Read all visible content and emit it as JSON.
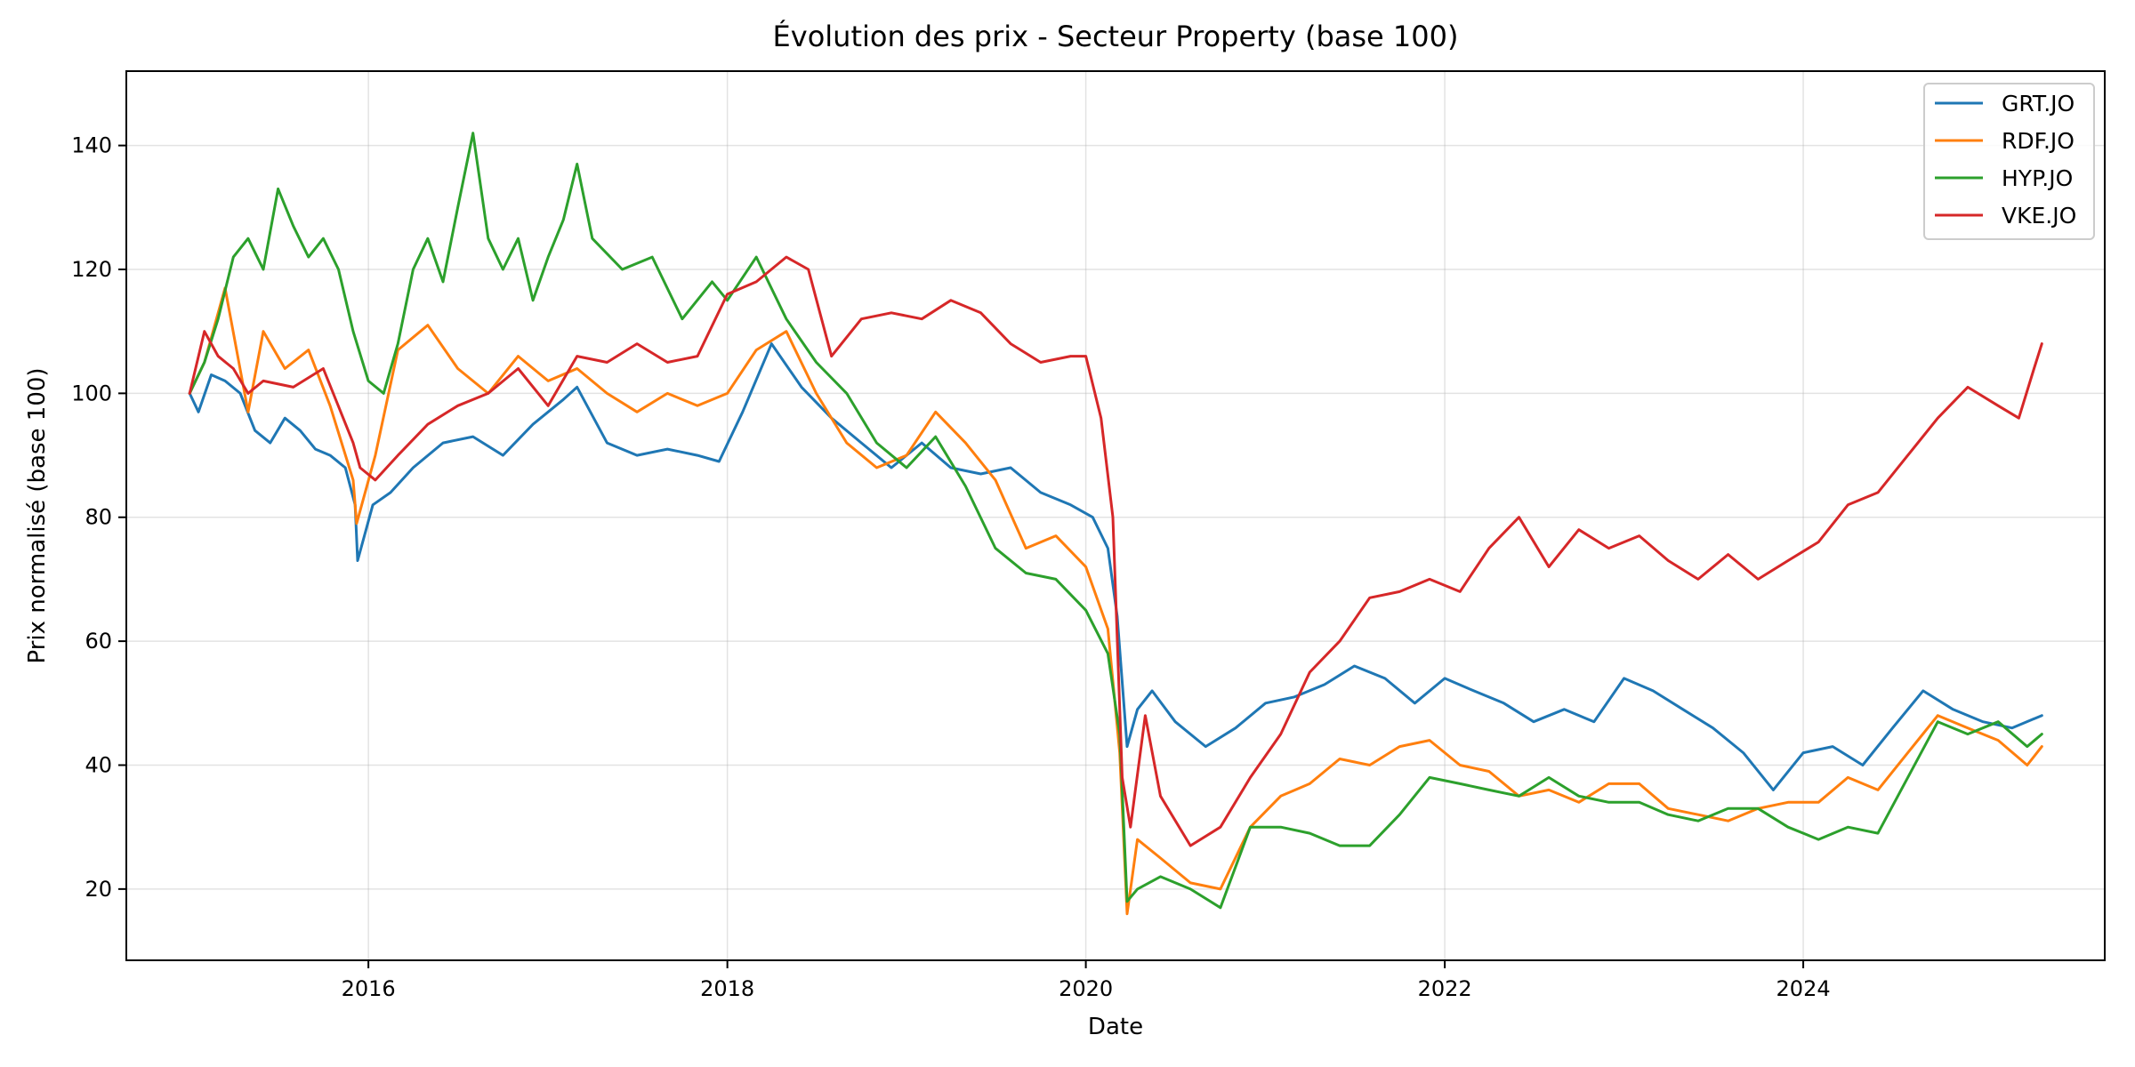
{
  "chart_data": {
    "type": "line",
    "title": "Évolution des prix - Secteur Property (base 100)",
    "xlabel": "Date",
    "ylabel": "Prix normalisé (base 100)",
    "xlim": [
      "2014-08-26",
      "2025-09-06"
    ],
    "ylim": [
      8.5,
      152
    ],
    "x_ticks": [
      "2016-01-01",
      "2018-01-01",
      "2020-01-01",
      "2022-01-01",
      "2024-01-01"
    ],
    "x_tick_labels": [
      "2016",
      "2018",
      "2020",
      "2022",
      "2024"
    ],
    "y_ticks": [
      20,
      40,
      60,
      80,
      100,
      120,
      140
    ],
    "grid": true,
    "legend_position": "top-right",
    "series": [
      {
        "name": "GRT.JO",
        "color": "#1f77b4",
        "x": [
          "2015-01-02",
          "2015-01-20",
          "2015-02-15",
          "2015-03-15",
          "2015-04-15",
          "2015-05-15",
          "2015-06-15",
          "2015-07-15",
          "2015-08-15",
          "2015-09-15",
          "2015-10-15",
          "2015-11-15",
          "2015-12-05",
          "2015-12-10",
          "2016-01-10",
          "2016-02-15",
          "2016-04-01",
          "2016-06-01",
          "2016-08-01",
          "2016-10-01",
          "2016-12-01",
          "2017-02-01",
          "2017-03-01",
          "2017-05-01",
          "2017-07-01",
          "2017-09-01",
          "2017-11-01",
          "2017-12-15",
          "2018-02-01",
          "2018-04-01",
          "2018-06-01",
          "2018-08-01",
          "2018-10-01",
          "2018-12-01",
          "2019-02-01",
          "2019-04-01",
          "2019-06-01",
          "2019-08-01",
          "2019-10-01",
          "2019-12-01",
          "2020-01-15",
          "2020-02-15",
          "2020-03-05",
          "2020-03-25",
          "2020-04-15",
          "2020-05-15",
          "2020-07-01",
          "2020-09-01",
          "2020-11-01",
          "2021-01-01",
          "2021-03-01",
          "2021-05-01",
          "2021-07-01",
          "2021-09-01",
          "2021-11-01",
          "2022-01-01",
          "2022-03-01",
          "2022-05-01",
          "2022-07-01",
          "2022-09-01",
          "2022-11-01",
          "2023-01-01",
          "2023-03-01",
          "2023-05-01",
          "2023-07-01",
          "2023-09-01",
          "2023-11-01",
          "2024-01-01",
          "2024-03-01",
          "2024-05-01",
          "2024-07-01",
          "2024-09-01",
          "2024-11-01",
          "2025-01-01",
          "2025-03-01",
          "2025-05-01"
        ],
        "values": [
          100,
          97,
          103,
          102,
          100,
          94,
          92,
          96,
          94,
          91,
          90,
          88,
          82,
          73,
          82,
          84,
          88,
          92,
          93,
          90,
          95,
          99,
          101,
          92,
          90,
          91,
          90,
          89,
          97,
          108,
          101,
          96,
          92,
          88,
          92,
          88,
          87,
          88,
          84,
          82,
          80,
          75,
          64,
          43,
          49,
          52,
          47,
          43,
          46,
          50,
          51,
          53,
          56,
          54,
          50,
          54,
          52,
          50,
          47,
          49,
          47,
          54,
          52,
          49,
          46,
          42,
          36,
          42,
          43,
          40,
          46,
          52,
          49,
          47,
          46,
          48
        ]
      },
      {
        "name": "RDF.JO",
        "color": "#ff7f0e",
        "x": [
          "2015-01-02",
          "2015-02-01",
          "2015-03-15",
          "2015-05-01",
          "2015-06-01",
          "2015-07-15",
          "2015-09-01",
          "2015-10-15",
          "2015-12-01",
          "2015-12-08",
          "2016-01-15",
          "2016-03-01",
          "2016-05-01",
          "2016-07-01",
          "2016-09-01",
          "2016-11-01",
          "2017-01-01",
          "2017-03-01",
          "2017-05-01",
          "2017-07-01",
          "2017-09-01",
          "2017-11-01",
          "2018-01-01",
          "2018-03-01",
          "2018-05-01",
          "2018-07-01",
          "2018-09-01",
          "2018-11-01",
          "2019-01-01",
          "2019-03-01",
          "2019-05-01",
          "2019-07-01",
          "2019-09-01",
          "2019-11-01",
          "2020-01-01",
          "2020-02-15",
          "2020-03-10",
          "2020-03-25",
          "2020-04-15",
          "2020-06-01",
          "2020-08-01",
          "2020-10-01",
          "2020-12-01",
          "2021-02-01",
          "2021-04-01",
          "2021-06-01",
          "2021-08-01",
          "2021-10-01",
          "2021-12-01",
          "2022-02-01",
          "2022-04-01",
          "2022-06-01",
          "2022-08-01",
          "2022-10-01",
          "2022-12-01",
          "2023-02-01",
          "2023-04-01",
          "2023-06-01",
          "2023-08-01",
          "2023-10-01",
          "2023-12-01",
          "2024-02-01",
          "2024-04-01",
          "2024-06-01",
          "2024-08-01",
          "2024-10-01",
          "2024-12-01",
          "2025-02-01",
          "2025-04-01",
          "2025-05-01"
        ],
        "values": [
          100,
          105,
          117,
          97,
          110,
          104,
          107,
          98,
          86,
          79,
          90,
          107,
          111,
          104,
          100,
          106,
          102,
          104,
          100,
          97,
          100,
          98,
          100,
          107,
          110,
          100,
          92,
          88,
          90,
          97,
          92,
          86,
          75,
          77,
          72,
          62,
          42,
          16,
          28,
          25,
          21,
          20,
          30,
          35,
          37,
          41,
          40,
          43,
          44,
          40,
          39,
          35,
          36,
          34,
          37,
          37,
          33,
          32,
          31,
          33,
          34,
          34,
          38,
          36,
          42,
          48,
          46,
          44,
          40,
          43
        ]
      },
      {
        "name": "HYP.JO",
        "color": "#2ca02c",
        "x": [
          "2015-01-02",
          "2015-02-01",
          "2015-03-01",
          "2015-04-01",
          "2015-05-01",
          "2015-06-01",
          "2015-07-01",
          "2015-08-01",
          "2015-09-01",
          "2015-10-01",
          "2015-11-01",
          "2015-12-01",
          "2016-01-01",
          "2016-02-01",
          "2016-03-01",
          "2016-04-01",
          "2016-05-01",
          "2016-06-01",
          "2016-07-01",
          "2016-08-01",
          "2016-09-01",
          "2016-10-01",
          "2016-11-01",
          "2016-12-01",
          "2017-01-01",
          "2017-02-01",
          "2017-03-01",
          "2017-04-01",
          "2017-06-01",
          "2017-08-01",
          "2017-10-01",
          "2017-12-01",
          "2018-01-01",
          "2018-03-01",
          "2018-05-01",
          "2018-07-01",
          "2018-09-01",
          "2018-11-01",
          "2019-01-01",
          "2019-03-01",
          "2019-05-01",
          "2019-07-01",
          "2019-09-01",
          "2019-11-01",
          "2020-01-01",
          "2020-02-15",
          "2020-03-10",
          "2020-03-25",
          "2020-04-15",
          "2020-06-01",
          "2020-08-01",
          "2020-10-01",
          "2020-12-01",
          "2021-02-01",
          "2021-04-01",
          "2021-06-01",
          "2021-08-01",
          "2021-10-01",
          "2021-12-01",
          "2022-02-01",
          "2022-04-01",
          "2022-06-01",
          "2022-08-01",
          "2022-10-01",
          "2022-12-01",
          "2023-02-01",
          "2023-04-01",
          "2023-06-01",
          "2023-08-01",
          "2023-10-01",
          "2023-12-01",
          "2024-02-01",
          "2024-04-01",
          "2024-06-01",
          "2024-08-01",
          "2024-10-01",
          "2024-12-01",
          "2025-02-01",
          "2025-04-01",
          "2025-05-01"
        ],
        "values": [
          100,
          105,
          112,
          122,
          125,
          120,
          133,
          127,
          122,
          125,
          120,
          110,
          102,
          100,
          108,
          120,
          125,
          118,
          130,
          142,
          125,
          120,
          125,
          115,
          122,
          128,
          137,
          125,
          120,
          122,
          112,
          118,
          115,
          122,
          112,
          105,
          100,
          92,
          88,
          93,
          85,
          75,
          71,
          70,
          65,
          58,
          45,
          18,
          20,
          22,
          20,
          17,
          30,
          30,
          29,
          27,
          27,
          32,
          38,
          37,
          36,
          35,
          38,
          35,
          34,
          34,
          32,
          31,
          33,
          33,
          30,
          28,
          30,
          29,
          38,
          47,
          45,
          47,
          43,
          45
        ]
      },
      {
        "name": "VKE.JO",
        "color": "#d62728",
        "x": [
          "2015-01-02",
          "2015-02-01",
          "2015-03-01",
          "2015-04-01",
          "2015-05-01",
          "2015-06-01",
          "2015-08-01",
          "2015-10-01",
          "2015-12-01",
          "2015-12-15",
          "2016-01-15",
          "2016-03-01",
          "2016-05-01",
          "2016-07-01",
          "2016-09-01",
          "2016-11-01",
          "2017-01-01",
          "2017-03-01",
          "2017-05-01",
          "2017-07-01",
          "2017-09-01",
          "2017-11-01",
          "2018-01-01",
          "2018-03-01",
          "2018-05-01",
          "2018-06-15",
          "2018-08-01",
          "2018-10-01",
          "2018-12-01",
          "2019-02-01",
          "2019-04-01",
          "2019-06-01",
          "2019-08-01",
          "2019-10-01",
          "2019-12-01",
          "2020-01-01",
          "2020-02-01",
          "2020-02-25",
          "2020-03-15",
          "2020-04-01",
          "2020-05-01",
          "2020-06-01",
          "2020-08-01",
          "2020-10-01",
          "2020-12-01",
          "2021-02-01",
          "2021-04-01",
          "2021-06-01",
          "2021-08-01",
          "2021-10-01",
          "2021-12-01",
          "2022-02-01",
          "2022-04-01",
          "2022-06-01",
          "2022-08-01",
          "2022-10-01",
          "2022-12-01",
          "2023-02-01",
          "2023-04-01",
          "2023-06-01",
          "2023-08-01",
          "2023-10-01",
          "2023-12-01",
          "2024-02-01",
          "2024-04-01",
          "2024-06-01",
          "2024-08-01",
          "2024-10-01",
          "2024-12-01",
          "2025-02-01",
          "2025-03-15",
          "2025-04-15",
          "2025-05-01"
        ],
        "values": [
          100,
          110,
          106,
          104,
          100,
          102,
          101,
          104,
          92,
          88,
          86,
          90,
          95,
          98,
          100,
          104,
          98,
          106,
          105,
          108,
          105,
          106,
          116,
          118,
          122,
          120,
          106,
          112,
          113,
          112,
          115,
          113,
          108,
          105,
          106,
          106,
          96,
          80,
          38,
          30,
          48,
          35,
          27,
          30,
          38,
          45,
          55,
          60,
          67,
          68,
          70,
          68,
          75,
          80,
          72,
          78,
          75,
          77,
          73,
          70,
          74,
          70,
          73,
          76,
          82,
          84,
          90,
          96,
          101,
          98,
          96,
          104,
          108
        ]
      }
    ]
  }
}
